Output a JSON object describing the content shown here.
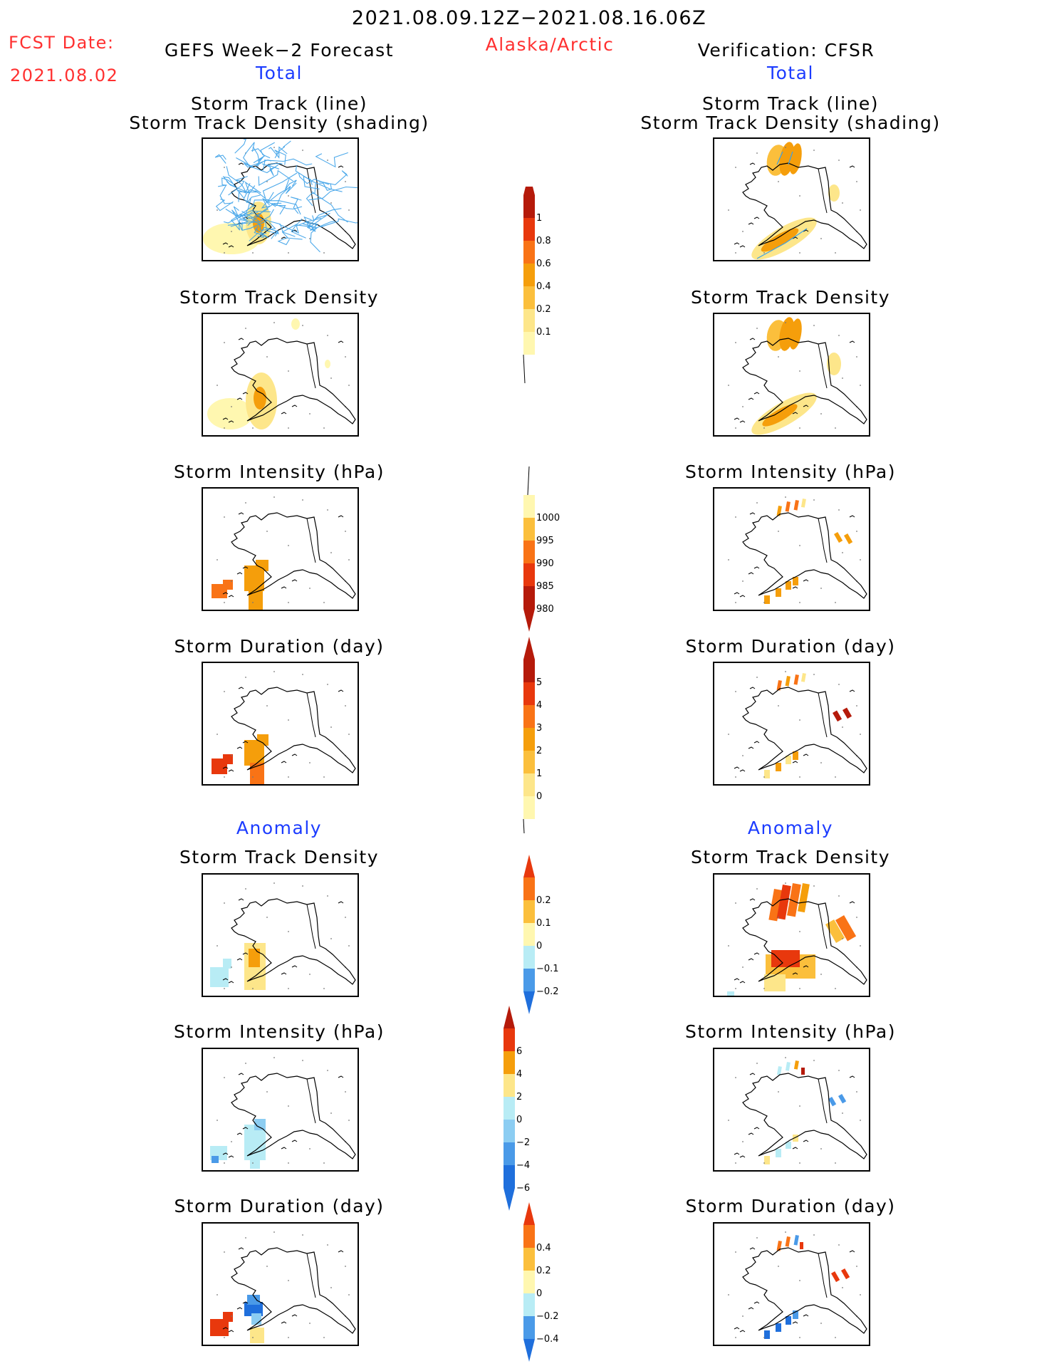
{
  "header": {
    "valid_period": "2021.08.09.12Z−2021.08.16.06Z",
    "fcst_date_label": "FCST Date:",
    "fcst_date_value": "2021.08.02",
    "left_title": "GEFS Week−2 Forecast",
    "region": "Alaska/Arctic",
    "right_title": "Verification: CFSR"
  },
  "sections": {
    "total_label": "Total",
    "anomaly_label": "Anomaly"
  },
  "panels": {
    "track_line_1": "Storm Track (line)",
    "track_line_2": "Storm Track Density (shading)",
    "track_density": "Storm Track Density",
    "intensity": "Storm Intensity (hPa)",
    "duration": "Storm Duration (day)"
  },
  "colorbars": {
    "density_total": [
      "1",
      "0.8",
      "0.6",
      "0.4",
      "0.2",
      "0.1"
    ],
    "intensity_total": [
      "1000",
      "995",
      "990",
      "985",
      "980"
    ],
    "duration_total": [
      "5",
      "4",
      "3",
      "2",
      "1",
      "0"
    ],
    "density_anom": [
      "0.2",
      "0.1",
      "0",
      "−0.1",
      "−0.2"
    ],
    "intensity_anom": [
      "6",
      "4",
      "2",
      "0",
      "−2",
      "−4",
      "−6"
    ],
    "duration_anom": [
      "0.4",
      "0.2",
      "0",
      "−0.2",
      "−0.4"
    ]
  },
  "colors": {
    "header_red": "#ff3030",
    "section_blue": "#1c3cff",
    "track_line": "#3aa0e8",
    "warm_scale": [
      "#fff7b0",
      "#fde68a",
      "#fbbf3c",
      "#f59e0b",
      "#f97316",
      "#e8380d",
      "#b51a0a"
    ],
    "cool_scale": [
      "#b8ecf5",
      "#8ccdf2",
      "#4a9ae8",
      "#1f6fdc"
    ]
  }
}
